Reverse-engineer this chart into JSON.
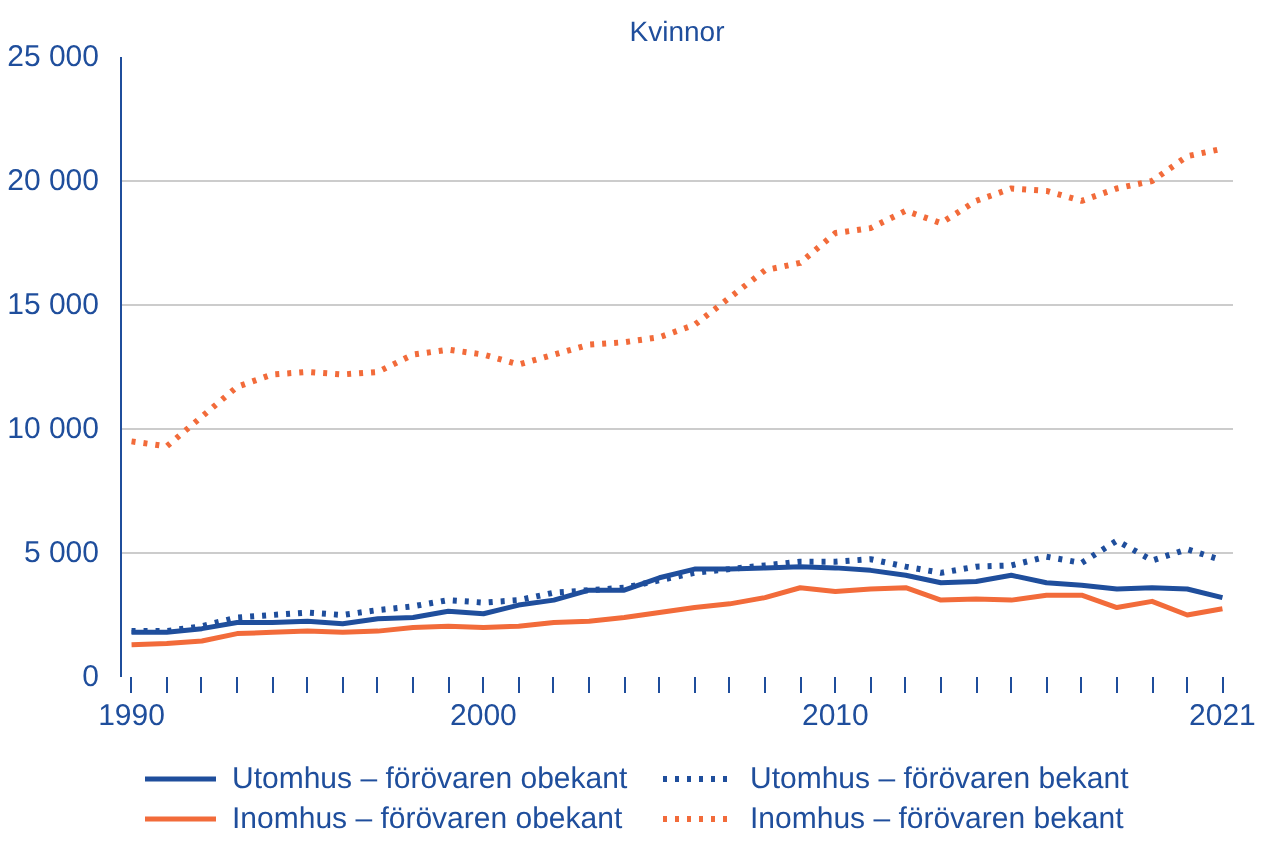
{
  "chart_data": {
    "type": "line",
    "title": "Kvinnor",
    "x": [
      1990,
      1991,
      1992,
      1993,
      1994,
      1995,
      1996,
      1997,
      1998,
      1999,
      2000,
      2001,
      2002,
      2003,
      2004,
      2005,
      2006,
      2007,
      2008,
      2009,
      2010,
      2011,
      2012,
      2013,
      2014,
      2015,
      2016,
      2017,
      2018,
      2019,
      2020,
      2021
    ],
    "series": [
      {
        "name": "Utomhus – förövaren obekant",
        "color": "#1f4e9c",
        "line_style": "solid",
        "values": [
          1800,
          1800,
          1950,
          2200,
          2200,
          2250,
          2150,
          2350,
          2400,
          2650,
          2550,
          2900,
          3100,
          3500,
          3500,
          4000,
          4350,
          4350,
          4400,
          4450,
          4400,
          4300,
          4100,
          3800,
          3850,
          4100,
          3800,
          3700,
          3550,
          3600,
          3550,
          3200
        ]
      },
      {
        "name": "Inomhus – förövaren obekant",
        "color": "#f26b3a",
        "line_style": "solid",
        "values": [
          1300,
          1350,
          1450,
          1750,
          1800,
          1850,
          1800,
          1850,
          2000,
          2050,
          2000,
          2050,
          2200,
          2250,
          2400,
          2600,
          2800,
          2950,
          3200,
          3600,
          3450,
          3550,
          3600,
          3100,
          3150,
          3100,
          3300,
          3300,
          2800,
          3050,
          2500,
          2750
        ]
      },
      {
        "name": "Utomhus – förövaren bekant",
        "color": "#1f4e9c",
        "line_style": "dotted",
        "values": [
          1850,
          1850,
          2050,
          2400,
          2500,
          2600,
          2500,
          2700,
          2850,
          3100,
          3000,
          3100,
          3400,
          3500,
          3600,
          3900,
          4200,
          4350,
          4500,
          4650,
          4650,
          4750,
          4450,
          4200,
          4450,
          4500,
          4850,
          4600,
          5500,
          4700,
          5150,
          4700
        ]
      },
      {
        "name": "Inomhus – förövaren bekant",
        "color": "#f26b3a",
        "line_style": "dotted",
        "values": [
          9500,
          9300,
          10500,
          11700,
          12200,
          12300,
          12200,
          12300,
          13000,
          13200,
          13000,
          12600,
          13000,
          13400,
          13500,
          13700,
          14200,
          15300,
          16400,
          16700,
          17900,
          18100,
          18800,
          18300,
          19200,
          19700,
          19600,
          19200,
          19700,
          20000,
          21000,
          21300
        ]
      }
    ],
    "xlim": [
      1989.7,
      2021.3
    ],
    "xticks": [
      1990,
      {
        "value": 1991,
        "label": null
      },
      {
        "value": 1992,
        "label": null
      },
      {
        "value": 1993,
        "label": null
      },
      {
        "value": 1994,
        "label": null
      },
      {
        "value": 1995,
        "label": null
      },
      {
        "value": 1996,
        "label": null
      },
      {
        "value": 1997,
        "label": null
      },
      {
        "value": 1998,
        "label": null
      },
      {
        "value": 1999,
        "label": null
      },
      2000,
      {
        "value": 2001,
        "label": null
      },
      {
        "value": 2002,
        "label": null
      },
      {
        "value": 2003,
        "label": null
      },
      {
        "value": 2004,
        "label": null
      },
      {
        "value": 2005,
        "label": null
      },
      {
        "value": 2006,
        "label": null
      },
      {
        "value": 2007,
        "label": null
      },
      {
        "value": 2008,
        "label": null
      },
      {
        "value": 2009,
        "label": null
      },
      2010,
      {
        "value": 2011,
        "label": null
      },
      {
        "value": 2012,
        "label": null
      },
      {
        "value": 2013,
        "label": null
      },
      {
        "value": 2014,
        "label": null
      },
      {
        "value": 2015,
        "label": null
      },
      {
        "value": 2016,
        "label": null
      },
      {
        "value": 2017,
        "label": null
      },
      {
        "value": 2018,
        "label": null
      },
      {
        "value": 2019,
        "label": null
      },
      {
        "value": 2020,
        "label": null
      },
      2021
    ],
    "ylim": [
      0,
      25000
    ],
    "yticks": [
      {
        "value": 0,
        "label": "0"
      },
      {
        "value": 5000,
        "label": "5 000"
      },
      {
        "value": 10000,
        "label": "10 000"
      },
      {
        "value": 15000,
        "label": "15 000"
      },
      {
        "value": 20000,
        "label": "20 000"
      },
      {
        "value": 25000,
        "label": "25 000"
      }
    ],
    "grid": "y",
    "legend": "bottom"
  }
}
